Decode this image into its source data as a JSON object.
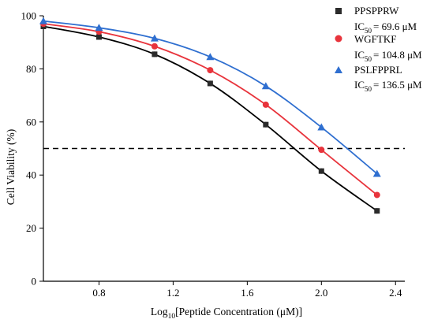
{
  "chart_data": {
    "type": "scatter",
    "xlabel_prefix": "Log",
    "xlabel_sub": "10",
    "xlabel_rest": "[Peptide Concentration (μM)]",
    "ylabel": "Cell Viability (%)",
    "xlim": [
      0.5,
      2.45
    ],
    "ylim": [
      0,
      100
    ],
    "xticks": [
      0.8,
      1.2,
      1.6,
      2.0,
      2.4
    ],
    "xtick_labels": [
      "0.8",
      "1.2",
      "1.6",
      "2.0",
      "2.4"
    ],
    "yticks": [
      0,
      20,
      40,
      60,
      80,
      100
    ],
    "ytick_labels": [
      "0",
      "20",
      "40",
      "60",
      "80",
      "100"
    ],
    "reference_line_y": 50,
    "legend_position": "top-right",
    "series": [
      {
        "name": "PPSPPRW",
        "ic50_prefix": "IC",
        "ic50_sub": "50",
        "ic50_value": "= 69.6 μM",
        "color": "#2b2b2b",
        "line_color": "#000000",
        "marker": "square",
        "x": [
          0.5,
          0.8,
          1.1,
          1.4,
          1.7,
          2.0,
          2.3
        ],
        "y": [
          96.0,
          92.0,
          85.5,
          74.5,
          59.0,
          41.5,
          26.5
        ]
      },
      {
        "name": "WGFTKF",
        "ic50_prefix": "IC",
        "ic50_sub": "50",
        "ic50_value": "= 104.8 μM",
        "color": "#e8343c",
        "line_color": "#e8343c",
        "marker": "circle",
        "x": [
          0.5,
          0.8,
          1.1,
          1.4,
          1.7,
          2.0,
          2.3
        ],
        "y": [
          97.0,
          94.0,
          88.5,
          79.5,
          66.5,
          49.5,
          32.5
        ]
      },
      {
        "name": "PSLFPPRL",
        "ic50_prefix": "IC",
        "ic50_sub": "50",
        "ic50_value": "= 136.5 μM",
        "color": "#2f6fd0",
        "line_color": "#2f6fd0",
        "marker": "triangle",
        "x": [
          0.5,
          0.8,
          1.1,
          1.4,
          1.7,
          2.0,
          2.3
        ],
        "y": [
          98.0,
          95.5,
          91.5,
          84.5,
          73.5,
          58.0,
          40.5
        ]
      }
    ]
  }
}
